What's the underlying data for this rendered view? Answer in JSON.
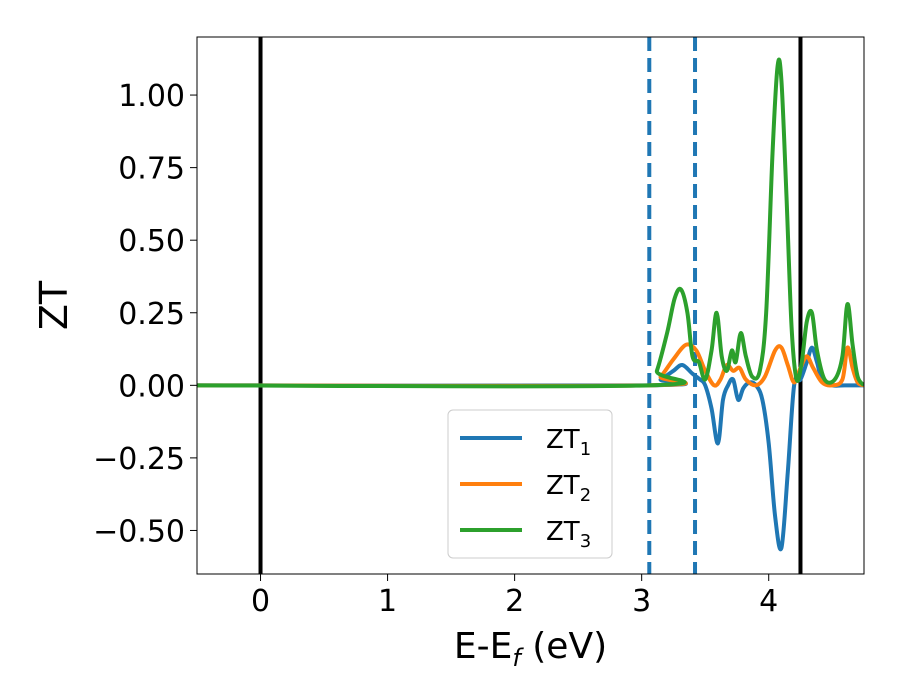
{
  "chart_data": {
    "type": "line",
    "xlabel": {
      "base": "E-E",
      "sub": "f",
      "suffix": " (eV)"
    },
    "ylabel": "ZT",
    "xlim": [
      -0.5,
      4.75
    ],
    "ylim": [
      -0.65,
      1.2
    ],
    "xticks": [
      {
        "value": 0,
        "label": "0"
      },
      {
        "value": 1,
        "label": "1"
      },
      {
        "value": 2,
        "label": "2"
      },
      {
        "value": 3,
        "label": "3"
      },
      {
        "value": 4,
        "label": "4"
      }
    ],
    "yticks": [
      {
        "value": -0.5,
        "label": "−0.50"
      },
      {
        "value": -0.25,
        "label": "−0.25"
      },
      {
        "value": 0.0,
        "label": "0.00"
      },
      {
        "value": 0.25,
        "label": "0.25"
      },
      {
        "value": 0.5,
        "label": "0.50"
      },
      {
        "value": 0.75,
        "label": "0.75"
      },
      {
        "value": 1.0,
        "label": "1.00"
      }
    ],
    "grid": false,
    "legend_position": "lower-center",
    "vlines": [
      {
        "x": 0.0,
        "style": "solid",
        "color": "#000000"
      },
      {
        "x": 3.06,
        "style": "dashed",
        "color": "#1f77b4"
      },
      {
        "x": 3.42,
        "style": "dashed",
        "color": "#1f77b4"
      },
      {
        "x": 4.25,
        "style": "solid",
        "color": "#000000"
      }
    ],
    "series": [
      {
        "name": {
          "base": "ZT",
          "sub": "1"
        },
        "color": "#1f77b4",
        "x": [
          -0.5,
          3.06,
          3.15,
          3.25,
          3.32,
          3.4,
          3.46,
          3.5,
          3.55,
          3.6,
          3.64,
          3.68,
          3.72,
          3.76,
          3.8,
          3.85,
          3.9,
          3.95,
          4.0,
          4.05,
          4.1,
          4.15,
          4.2,
          4.25,
          4.3,
          4.34,
          4.38,
          4.42,
          4.5,
          4.6,
          4.7,
          4.75
        ],
        "y": [
          0.0,
          0.0,
          0.02,
          0.05,
          0.07,
          0.04,
          0.02,
          0.0,
          -0.08,
          -0.2,
          -0.05,
          0.0,
          0.02,
          -0.05,
          -0.01,
          0.01,
          0.0,
          -0.05,
          -0.2,
          -0.45,
          -0.56,
          -0.3,
          0.0,
          0.02,
          0.08,
          0.13,
          0.08,
          0.02,
          0.0,
          0.0,
          0.0,
          0.0
        ]
      },
      {
        "name": {
          "base": "ZT",
          "sub": "2"
        },
        "color": "#ff7f0e",
        "x": [
          -0.5,
          3.06,
          3.15,
          3.25,
          3.35,
          3.43,
          3.5,
          3.57,
          3.62,
          3.67,
          3.72,
          3.77,
          3.82,
          3.9,
          3.97,
          4.05,
          4.1,
          4.15,
          4.2,
          4.25,
          4.3,
          4.35,
          4.42,
          4.5,
          4.58,
          4.62,
          4.66,
          4.7,
          4.75
        ],
        "y": [
          0.0,
          0.0,
          0.03,
          0.09,
          0.14,
          0.12,
          0.05,
          0.0,
          0.02,
          0.07,
          0.05,
          0.06,
          0.02,
          0.0,
          0.03,
          0.12,
          0.13,
          0.07,
          0.01,
          0.06,
          0.1,
          0.06,
          0.01,
          0.0,
          0.02,
          0.13,
          0.06,
          0.01,
          0.0
        ]
      },
      {
        "name": {
          "base": "ZT",
          "sub": "3"
        },
        "color": "#2ca02c",
        "x": [
          -0.5,
          3.06,
          3.12,
          3.2,
          3.26,
          3.31,
          3.36,
          3.4,
          3.45,
          3.5,
          3.55,
          3.59,
          3.63,
          3.67,
          3.71,
          3.74,
          3.78,
          3.82,
          3.87,
          3.93,
          3.98,
          4.03,
          4.07,
          4.1,
          4.14,
          4.18,
          4.22,
          4.26,
          4.3,
          4.34,
          4.38,
          4.44,
          4.52,
          4.58,
          4.62,
          4.66,
          4.7,
          4.75
        ],
        "y": [
          0.0,
          0.0,
          0.05,
          0.18,
          0.3,
          0.33,
          0.25,
          0.1,
          0.08,
          0.02,
          0.12,
          0.25,
          0.1,
          0.05,
          0.12,
          0.08,
          0.18,
          0.1,
          0.03,
          0.05,
          0.25,
          0.8,
          1.1,
          1.05,
          0.65,
          0.2,
          0.02,
          0.08,
          0.22,
          0.25,
          0.12,
          0.02,
          0.02,
          0.1,
          0.28,
          0.14,
          0.03,
          0.0
        ]
      }
    ]
  }
}
